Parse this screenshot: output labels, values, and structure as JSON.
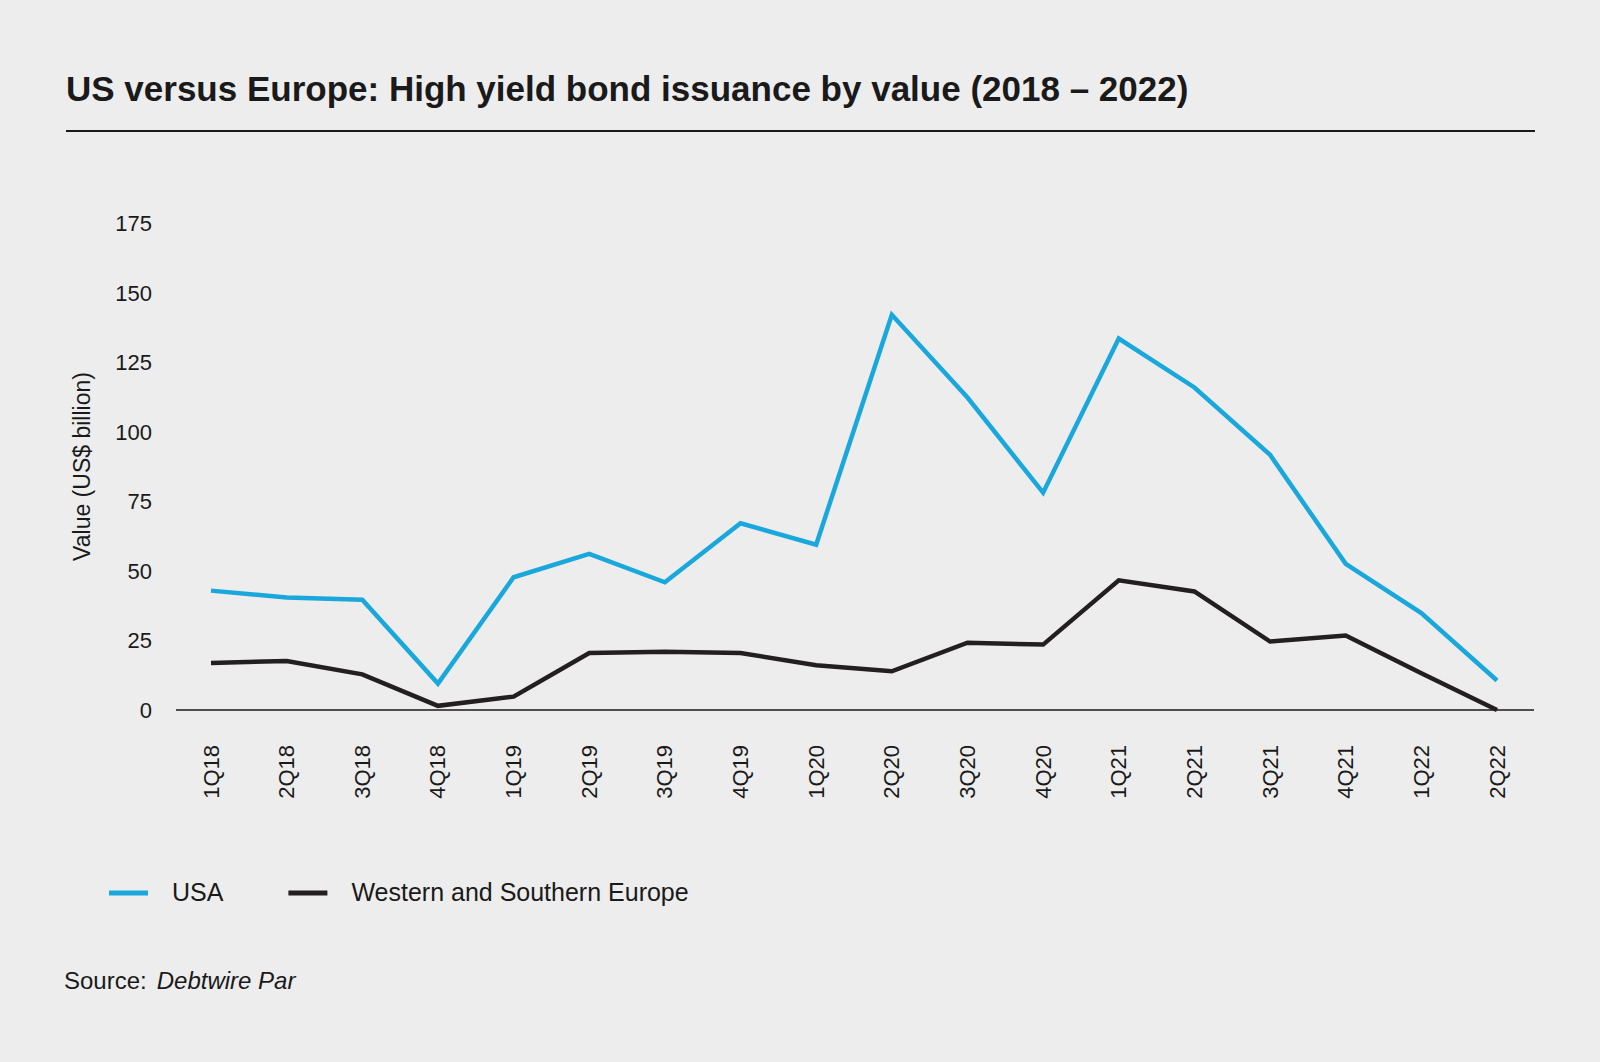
{
  "chart_data": {
    "type": "line",
    "title": "US versus Europe: High yield bond issuance by value (2018 – 2022)",
    "y_label": "Value (US$ billion)",
    "source_label": "Source:",
    "source": "Debtwire Par",
    "categories": [
      "1Q18",
      "2Q18",
      "3Q18",
      "4Q18",
      "1Q19",
      "2Q19",
      "3Q19",
      "4Q19",
      "1Q20",
      "2Q20",
      "3Q20",
      "4Q20",
      "1Q21",
      "2Q21",
      "3Q21",
      "4Q21",
      "1Q22",
      "2Q22"
    ],
    "series": [
      {
        "name": "USA",
        "color": "#1aa7dc",
        "values": [
          42.9,
          40.4,
          39.6,
          9.5,
          47.7,
          56.1,
          45.9,
          67.1,
          59.4,
          142,
          112.3,
          78.1,
          133.5,
          115.9,
          91.7,
          52.5,
          34.8,
          10.6
        ]
      },
      {
        "name": "Western and Southern Europe",
        "color": "#231f20",
        "values": [
          16.9,
          17.6,
          12.8,
          1.5,
          4.8,
          20.5,
          20.9,
          20.5,
          16.1,
          13.9,
          24.2,
          23.5,
          46.6,
          42.6,
          24.6,
          26.8,
          13.2,
          0
        ]
      }
    ],
    "ylim": [
      0,
      175
    ],
    "yticks": [
      0,
      25,
      50,
      75,
      100,
      125,
      150,
      175
    ],
    "grid": false,
    "legend": "bottom"
  }
}
